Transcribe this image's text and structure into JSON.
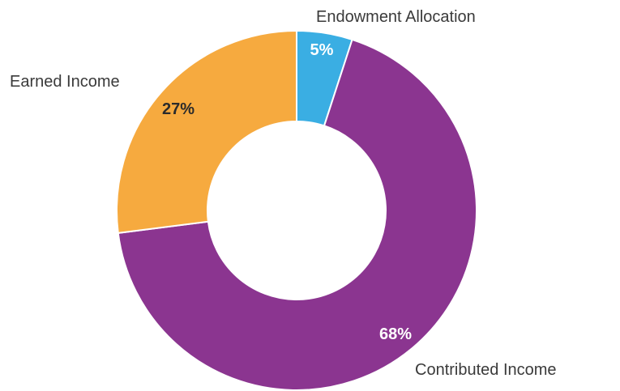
{
  "chart_data": {
    "type": "pie",
    "donut": true,
    "start_angle_deg": 0,
    "direction": "clockwise",
    "slices": [
      {
        "label": "Endowment Allocation",
        "value": 5,
        "value_label": "5%",
        "color": "#3aaee3",
        "value_label_color": "#ffffff"
      },
      {
        "label": "Contributed Income",
        "value": 68,
        "value_label": "68%",
        "color": "#8b3590",
        "value_label_color": "#ffffff"
      },
      {
        "label": "Earned Income",
        "value": 27,
        "value_label": "27%",
        "color": "#f6aa3f",
        "value_label_color": "#2b2b2b"
      }
    ],
    "legend": "none"
  }
}
